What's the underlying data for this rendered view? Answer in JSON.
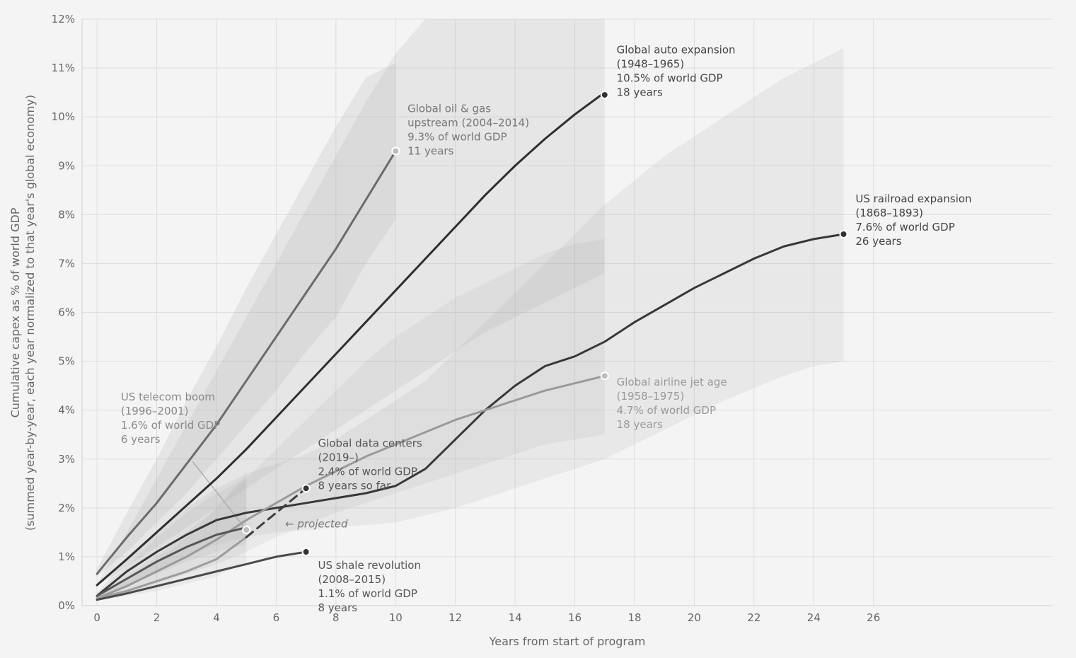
{
  "chart_data": {
    "type": "line",
    "xlabel": "Years from start of program",
    "ylabel": "Cumulative capex as % of world GDP",
    "ylabel2": "(summed year-by-year, each year normalized to that year's global economy)",
    "xlim": [
      -0.5,
      32
    ],
    "ylim": [
      0,
      12
    ],
    "x_ticks": [
      0,
      2,
      4,
      6,
      8,
      10,
      12,
      14,
      16,
      18,
      20,
      22,
      24,
      26
    ],
    "y_ticks": [
      0,
      1,
      2,
      3,
      4,
      5,
      6,
      7,
      8,
      9,
      10,
      11,
      12
    ],
    "y_tick_suffix": "%",
    "grid": true,
    "series": [
      {
        "key": "oil",
        "color": "#6b6b6b",
        "x": [
          0,
          1,
          2,
          3,
          4,
          5,
          6,
          7,
          8,
          9,
          10
        ],
        "y": [
          0.65,
          1.4,
          2.1,
          2.9,
          3.7,
          4.6,
          5.5,
          6.4,
          7.3,
          8.3,
          9.3
        ],
        "band_low": [
          0.6,
          1.1,
          1.7,
          2.3,
          3.0,
          3.7,
          4.4,
          5.2,
          5.9,
          7.0,
          7.9
        ],
        "band_high": [
          0.75,
          1.9,
          3.0,
          4.2,
          5.3,
          6.5,
          7.6,
          8.7,
          9.8,
          10.8,
          11.1
        ],
        "band_opacity": 0.16,
        "width": 3
      },
      {
        "key": "auto",
        "color": "#2f2f2f",
        "x": [
          0,
          1,
          2,
          3,
          4,
          5,
          6,
          7,
          8,
          9,
          10,
          11,
          12,
          13,
          14,
          15,
          16,
          17
        ],
        "y": [
          0.42,
          0.95,
          1.5,
          2.05,
          2.6,
          3.2,
          3.85,
          4.5,
          5.15,
          5.8,
          6.45,
          7.1,
          7.75,
          8.4,
          9.0,
          9.55,
          10.05,
          10.5
        ],
        "band_low": [
          0.4,
          0.8,
          1.2,
          1.6,
          2.0,
          2.4,
          2.8,
          3.2,
          3.6,
          4.0,
          4.4,
          4.8,
          5.2,
          5.6,
          5.9,
          6.2,
          6.5,
          6.8
        ],
        "band_high": [
          0.45,
          1.5,
          2.6,
          3.7,
          4.8,
          5.9,
          7.0,
          8.1,
          9.2,
          10.3,
          11.3,
          12,
          12,
          12,
          12,
          12,
          12,
          12
        ],
        "band_opacity": 0.15,
        "width": 3
      },
      {
        "key": "rail",
        "color": "#383838",
        "x": [
          0,
          1,
          2,
          3,
          4,
          5,
          6,
          7,
          8,
          9,
          10,
          11,
          12,
          13,
          14,
          15,
          16,
          17,
          18,
          19,
          20,
          21,
          22,
          23,
          24,
          25
        ],
        "y": [
          0.2,
          0.7,
          1.1,
          1.45,
          1.75,
          1.9,
          2.0,
          2.1,
          2.2,
          2.3,
          2.45,
          2.8,
          3.4,
          4.0,
          4.5,
          4.9,
          5.1,
          5.4,
          5.8,
          6.15,
          6.5,
          6.8,
          7.1,
          7.35,
          7.5,
          7.6
        ],
        "band_low": [
          0.15,
          0.4,
          0.7,
          1.0,
          1.25,
          1.4,
          1.5,
          1.55,
          1.6,
          1.65,
          1.7,
          1.85,
          2.0,
          2.2,
          2.4,
          2.6,
          2.8,
          3.0,
          3.3,
          3.6,
          3.9,
          4.2,
          4.45,
          4.7,
          4.9,
          5.0
        ],
        "band_high": [
          0.25,
          1.0,
          1.5,
          2.0,
          2.4,
          2.7,
          2.9,
          3.1,
          3.4,
          3.8,
          4.2,
          4.6,
          5.2,
          5.8,
          6.4,
          7.0,
          7.6,
          8.2,
          8.7,
          9.2,
          9.6,
          10.0,
          10.4,
          10.8,
          11.1,
          11.4
        ],
        "band_opacity": 0.13,
        "width": 3
      },
      {
        "key": "airline",
        "color": "#9a9a9a",
        "x": [
          0,
          1,
          2,
          3,
          4,
          5,
          6,
          7,
          8,
          9,
          10,
          11,
          12,
          13,
          14,
          15,
          16,
          17
        ],
        "y": [
          0.15,
          0.4,
          0.7,
          1.0,
          1.35,
          1.75,
          2.1,
          2.45,
          2.75,
          3.05,
          3.3,
          3.55,
          3.8,
          4.0,
          4.2,
          4.4,
          4.55,
          4.7
        ],
        "band_low": [
          0.1,
          0.25,
          0.45,
          0.65,
          0.85,
          1.1,
          1.4,
          1.65,
          1.9,
          2.1,
          2.3,
          2.5,
          2.7,
          2.9,
          3.1,
          3.3,
          3.4,
          3.5
        ],
        "band_high": [
          0.2,
          0.6,
          1.0,
          1.5,
          2.0,
          2.6,
          3.2,
          3.8,
          4.4,
          5.0,
          5.5,
          5.9,
          6.3,
          6.6,
          6.9,
          7.2,
          7.4,
          7.5
        ],
        "band_opacity": 0.12,
        "width": 3
      },
      {
        "key": "telecom",
        "color": "#555555",
        "x": [
          0,
          1,
          2,
          3,
          4,
          5
        ],
        "y": [
          0.2,
          0.55,
          0.9,
          1.2,
          1.45,
          1.6
        ],
        "band_low": [
          0.15,
          0.4,
          0.65,
          0.9,
          1.1,
          1.25
        ],
        "band_high": [
          0.25,
          0.8,
          1.4,
          1.9,
          2.3,
          2.6
        ],
        "band_opacity": 0.12,
        "width": 3
      },
      {
        "key": "datacenters",
        "color": "#9d9d9d",
        "x": [
          0,
          1,
          2,
          3,
          4,
          5
        ],
        "y": [
          0.15,
          0.3,
          0.5,
          0.7,
          0.95,
          1.4
        ],
        "band_low": [
          0.1,
          0.2,
          0.3,
          0.45,
          0.6,
          0.9
        ],
        "band_high": [
          0.2,
          0.5,
          0.9,
          1.4,
          2.0,
          2.7
        ],
        "band_opacity": 0.12,
        "width": 3
      },
      {
        "key": "datacenters_projected",
        "color": "#3d3d3d",
        "dashed": true,
        "x": [
          5,
          6,
          7
        ],
        "y": [
          1.4,
          1.9,
          2.4
        ],
        "width": 3
      },
      {
        "key": "shale",
        "color": "#4a4a4a",
        "x": [
          0,
          1,
          2,
          3,
          4,
          5,
          6,
          7
        ],
        "y": [
          0.12,
          0.25,
          0.4,
          0.55,
          0.7,
          0.85,
          1.0,
          1.1
        ],
        "width": 3
      }
    ],
    "endpoints": [
      {
        "x": 10,
        "y": 9.3,
        "fill": "#bdbdbd"
      },
      {
        "x": 17,
        "y": 10.45,
        "fill": "#333333"
      },
      {
        "x": 25,
        "y": 7.6,
        "fill": "#333333"
      },
      {
        "x": 17,
        "y": 4.7,
        "fill": "#bdbdbd"
      },
      {
        "x": 5,
        "y": 1.55,
        "fill": "#bdbdbd"
      },
      {
        "x": 7,
        "y": 2.4,
        "fill": "#333333"
      },
      {
        "x": 7,
        "y": 1.1,
        "fill": "#333333"
      }
    ],
    "annotations": [
      {
        "key": "oil",
        "x": 10.4,
        "y": 10.1,
        "color": "#777777",
        "lines": [
          "Global oil & gas",
          "upstream (2004–2014)",
          "9.3% of world GDP",
          "11 years"
        ]
      },
      {
        "key": "auto",
        "x": 17.4,
        "y": 11.3,
        "color": "#444444",
        "lines": [
          "Global auto expansion",
          "(1948–1965)",
          "10.5% of world GDP",
          "18 years"
        ]
      },
      {
        "key": "rail",
        "x": 25.4,
        "y": 8.25,
        "color": "#444444",
        "lines": [
          "US railroad expansion",
          "(1868–1893)",
          "7.6% of world GDP",
          "26 years"
        ]
      },
      {
        "key": "airline",
        "x": 17.4,
        "y": 4.5,
        "color": "#9a9a9a",
        "lines": [
          "Global airline jet age",
          "(1958–1975)",
          "4.7% of world GDP",
          "18 years"
        ]
      },
      {
        "key": "telecom",
        "x": 0.8,
        "y": 4.2,
        "color": "#8a8a8a",
        "lines": [
          "US telecom boom",
          "(1996–2001)",
          "1.6% of world GDP",
          "6 years"
        ]
      },
      {
        "key": "datacenters",
        "x": 7.4,
        "y": 3.25,
        "color": "#555555",
        "lines": [
          "Global data centers",
          "(2019–)",
          "2.4% of world GDP",
          "8 years so far"
        ]
      },
      {
        "key": "shale",
        "x": 7.4,
        "y": 0.75,
        "color": "#555555",
        "lines": [
          "US shale revolution",
          "(2008–2015)",
          "1.1% of world GDP",
          "8 years"
        ]
      }
    ],
    "projected_label": {
      "text": "← projected",
      "x": 6.3,
      "y": 1.6
    }
  }
}
